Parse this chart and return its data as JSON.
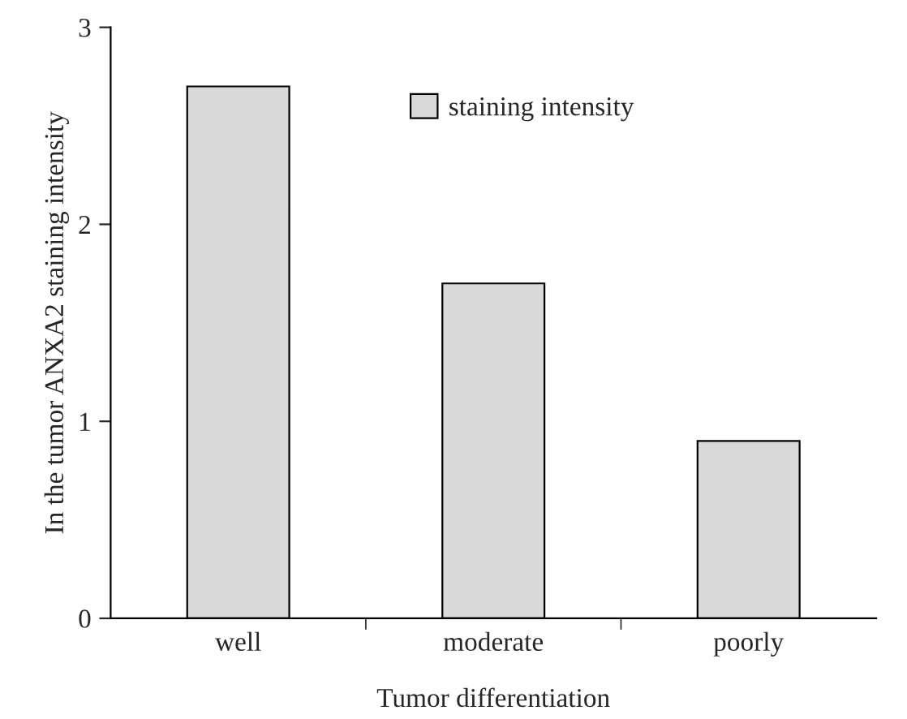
{
  "chart_data": {
    "type": "bar",
    "xlabel": "Tumor differentiation",
    "ylabel": "In the tumor ANXA2 staining intensity",
    "categories": [
      "well",
      "moderate",
      "poorly"
    ],
    "series": [
      {
        "name": "staining intensity",
        "color": "#d9d9d9",
        "values": [
          2.7,
          1.7,
          0.9
        ]
      }
    ],
    "ylim": [
      0,
      3
    ],
    "yticks": [
      0,
      1,
      2,
      3
    ],
    "grid": false,
    "legend": "top"
  }
}
